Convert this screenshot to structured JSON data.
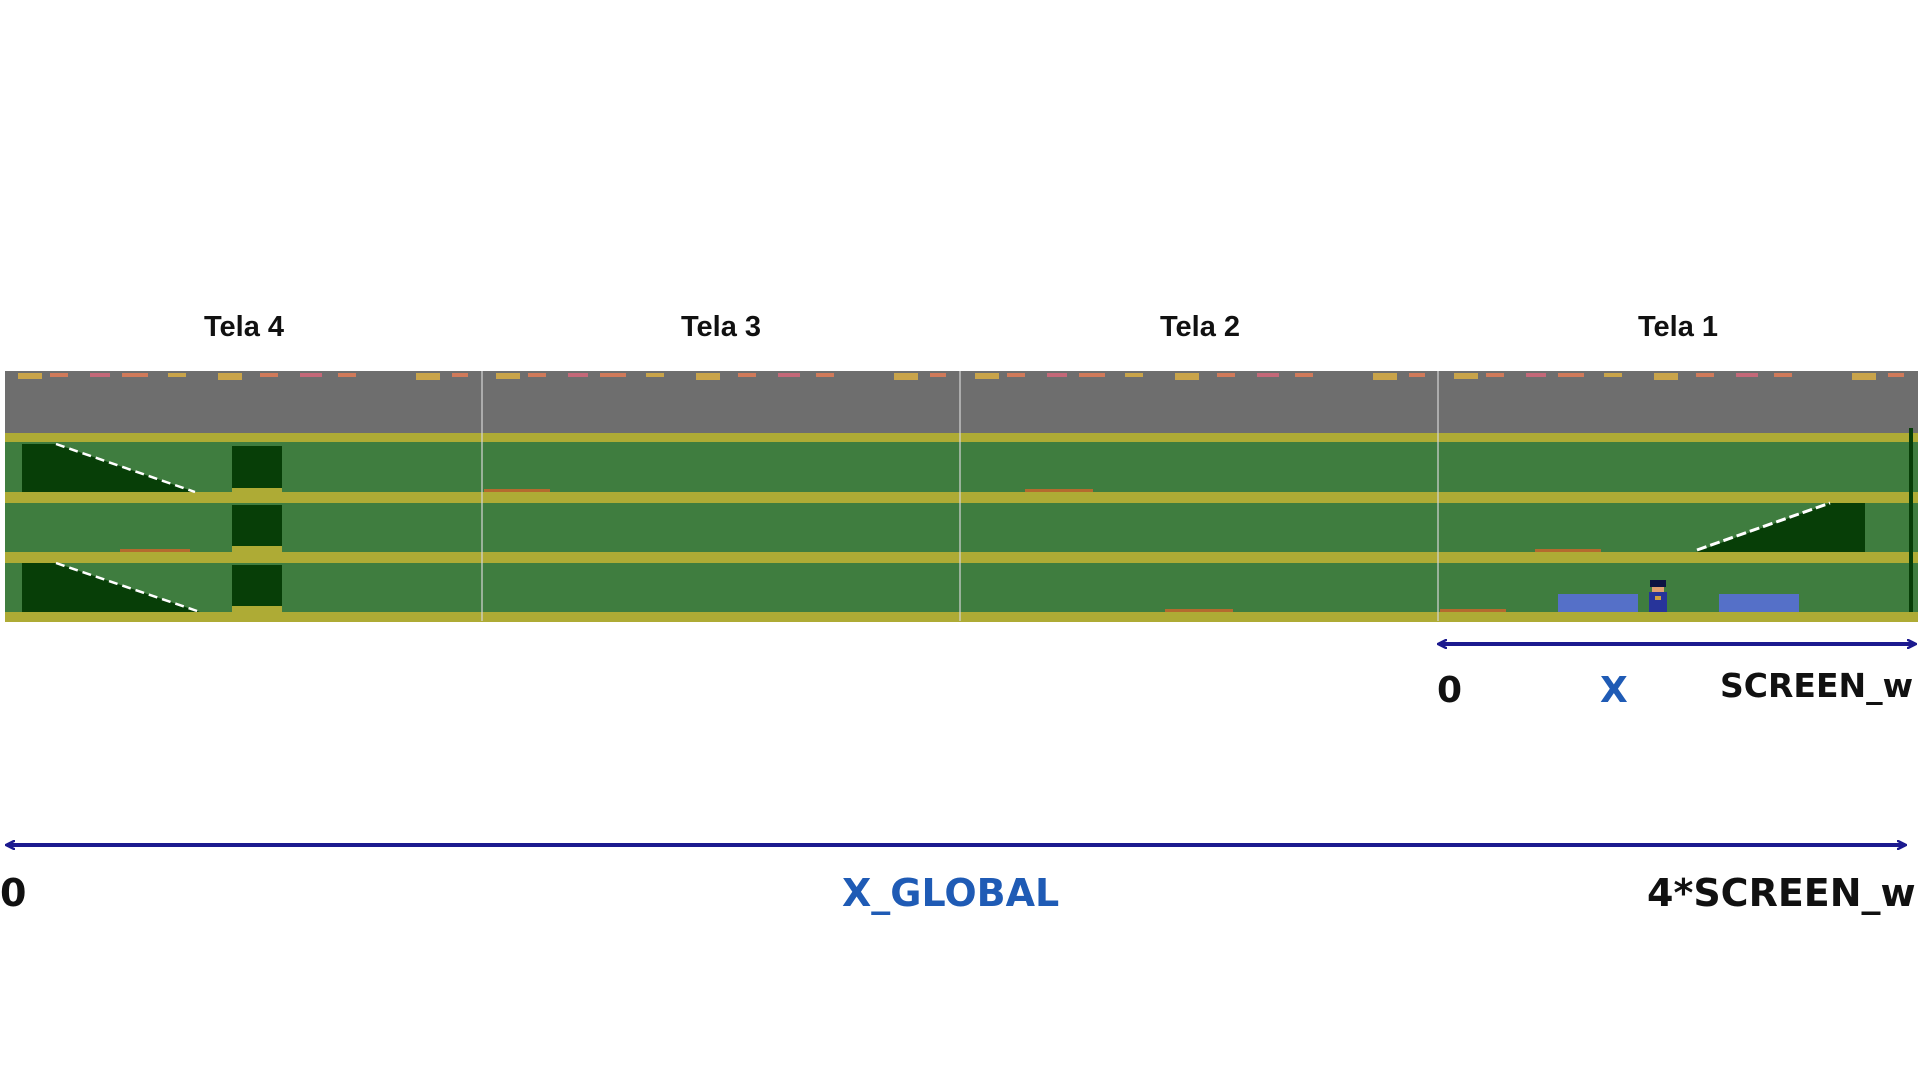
{
  "screens": [
    {
      "id": "tela-4",
      "title": "Tela 4"
    },
    {
      "id": "tela-3",
      "title": "Tela 3"
    },
    {
      "id": "tela-2",
      "title": "Tela 2"
    },
    {
      "id": "tela-1",
      "title": "Tela 1"
    }
  ],
  "local_axis": {
    "start_label": "0",
    "var_label": "X",
    "end_label": "SCREEN_w"
  },
  "global_axis": {
    "start_label": "0",
    "var_label": "X_GLOBAL",
    "end_label": "4*SCREEN_w"
  },
  "colors": {
    "sky": "#6e6e6e",
    "floor": "#3f7d3f",
    "dark_block": "#073e07",
    "floor_line": "#aeab35",
    "axis_arrow": "#1c1a8f",
    "axis_var_text": "#1f5bb5",
    "object_blue": "#5570c8"
  }
}
